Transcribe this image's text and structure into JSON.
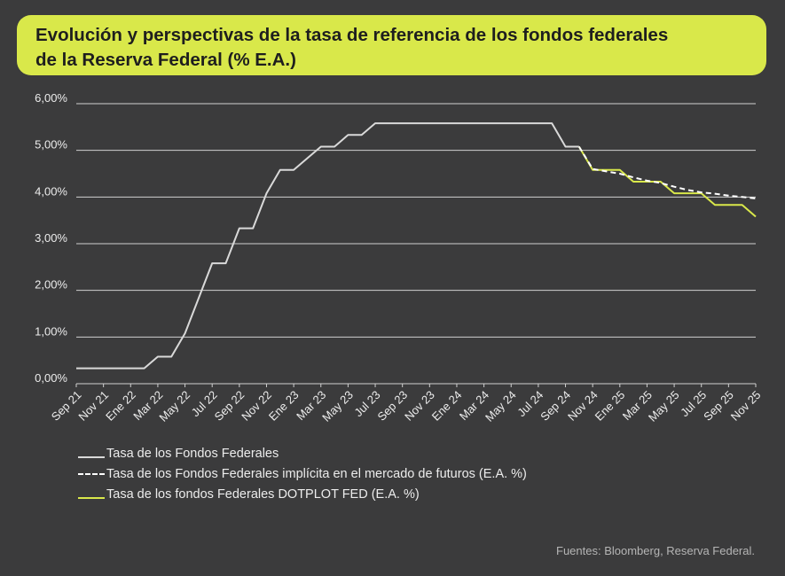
{
  "title_lines": [
    "Evolución y perspectivas de la tasa de referencia de los fondos federales",
    "de la Reserva Federal (% E.A.)"
  ],
  "source": "Fuentes: Bloomberg, Reserva Federal.",
  "colors": {
    "background": "#3b3b3c",
    "accent": "#d9e84a",
    "historical": "#d9d9d9",
    "futures": "#ffffff",
    "grid": "#d0d0d0"
  },
  "chart_data": {
    "type": "line",
    "ylim": [
      0,
      6
    ],
    "y_ticks": [
      "0,00%",
      "1,00%",
      "2,00%",
      "3,00%",
      "4,00%",
      "5,00%",
      "6,00%"
    ],
    "x_labels": [
      "Sep 21",
      "Nov 21",
      "Ene 22",
      "Mar 22",
      "May 22",
      "Jul 22",
      "Sep 22",
      "Nov 22",
      "Ene 23",
      "Mar 23",
      "May 23",
      "Jul 23",
      "Sep 23",
      "Nov 23",
      "Ene 24",
      "Mar 24",
      "May 24",
      "Jul 24",
      "Sep 24",
      "Nov 24",
      "Ene 25",
      "Mar 25",
      "May 25",
      "Jul 25",
      "Sep 25",
      "Nov 25"
    ],
    "grid": "horizontal",
    "legend_position": "bottom-left",
    "series": [
      {
        "name": "Tasa de los Fondos Federales",
        "style": "solid",
        "color": "#d9d9d9",
        "points": [
          [
            "2021-09",
            0.33
          ],
          [
            "2021-10",
            0.33
          ],
          [
            "2021-11",
            0.33
          ],
          [
            "2021-12",
            0.33
          ],
          [
            "2022-01",
            0.33
          ],
          [
            "2022-02",
            0.33
          ],
          [
            "2022-03",
            0.58
          ],
          [
            "2022-04",
            0.58
          ],
          [
            "2022-05",
            1.08
          ],
          [
            "2022-06",
            1.83
          ],
          [
            "2022-07",
            2.58
          ],
          [
            "2022-08",
            2.58
          ],
          [
            "2022-09",
            3.33
          ],
          [
            "2022-10",
            3.33
          ],
          [
            "2022-11",
            4.08
          ],
          [
            "2022-12",
            4.58
          ],
          [
            "2023-01",
            4.58
          ],
          [
            "2023-02",
            4.83
          ],
          [
            "2023-03",
            5.08
          ],
          [
            "2023-04",
            5.08
          ],
          [
            "2023-05",
            5.33
          ],
          [
            "2023-06",
            5.33
          ],
          [
            "2023-07",
            5.58
          ],
          [
            "2023-08",
            5.58
          ],
          [
            "2023-09",
            5.58
          ],
          [
            "2023-10",
            5.58
          ],
          [
            "2023-11",
            5.58
          ],
          [
            "2023-12",
            5.58
          ],
          [
            "2024-01",
            5.58
          ],
          [
            "2024-02",
            5.58
          ],
          [
            "2024-03",
            5.58
          ],
          [
            "2024-04",
            5.58
          ],
          [
            "2024-05",
            5.58
          ],
          [
            "2024-06",
            5.58
          ],
          [
            "2024-07",
            5.58
          ],
          [
            "2024-08",
            5.58
          ],
          [
            "2024-09",
            5.08
          ],
          [
            "2024-10",
            5.08
          ]
        ]
      },
      {
        "name": "Tasa de los Fondos Federales implícita en el mercado de futuros (E.A. %)",
        "style": "dashed",
        "color": "#ffffff",
        "points": [
          [
            "2024-10",
            5.08
          ],
          [
            "2024-11",
            4.6
          ],
          [
            "2024-12",
            4.55
          ],
          [
            "2025-01",
            4.5
          ],
          [
            "2025-02",
            4.42
          ],
          [
            "2025-03",
            4.35
          ],
          [
            "2025-04",
            4.3
          ],
          [
            "2025-05",
            4.22
          ],
          [
            "2025-06",
            4.15
          ],
          [
            "2025-07",
            4.1
          ],
          [
            "2025-08",
            4.07
          ],
          [
            "2025-09",
            4.03
          ],
          [
            "2025-10",
            4.0
          ],
          [
            "2025-11",
            3.97
          ]
        ]
      },
      {
        "name": "Tasa de los fondos Federales DOTPLOT FED (E.A. %)",
        "style": "solid",
        "color": "#d9e84a",
        "points": [
          [
            "2024-10",
            5.08
          ],
          [
            "2024-11",
            4.58
          ],
          [
            "2024-12",
            4.58
          ],
          [
            "2025-01",
            4.58
          ],
          [
            "2025-02",
            4.33
          ],
          [
            "2025-03",
            4.33
          ],
          [
            "2025-04",
            4.33
          ],
          [
            "2025-05",
            4.08
          ],
          [
            "2025-06",
            4.08
          ],
          [
            "2025-07",
            4.08
          ],
          [
            "2025-08",
            3.83
          ],
          [
            "2025-09",
            3.83
          ],
          [
            "2025-10",
            3.83
          ],
          [
            "2025-11",
            3.58
          ]
        ]
      }
    ]
  }
}
